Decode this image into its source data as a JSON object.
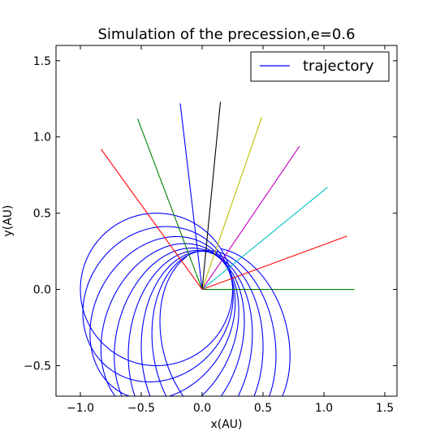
{
  "chart_data": {
    "type": "line",
    "title": "Simulation of the precession,e=0.6",
    "xlabel": "x(AU)",
    "ylabel": "y(AU)",
    "xlim": [
      -1.2,
      1.6
    ],
    "ylim": [
      -0.7,
      1.6
    ],
    "xticks": [
      -1.0,
      -0.5,
      0.0,
      0.5,
      1.0,
      1.5
    ],
    "xtick_labels": [
      "−1.0",
      "−0.5",
      "0.0",
      "0.5",
      "1.0",
      "1.5"
    ],
    "yticks": [
      -0.5,
      0.0,
      0.5,
      1.0,
      1.5
    ],
    "ytick_labels": [
      "−0.5",
      "0.0",
      "0.5",
      "1.0",
      "1.5"
    ],
    "grid": false,
    "legend": {
      "position": "top-right",
      "entries": [
        {
          "label": "trajectory",
          "color": "#0000ff"
        }
      ]
    },
    "series": [
      {
        "name": "trajectory",
        "color": "#0000ff",
        "eccentricity": 0.6,
        "perihelion_distance": 0.25,
        "periapsis_angles_deg": [
          0,
          15,
          30,
          45,
          60,
          75,
          90,
          105,
          120
        ],
        "partial_last_orbit_end_deg": 300
      }
    ],
    "apsis_lines": [
      {
        "x": 1.25,
        "y": 0.0,
        "color": "#008000"
      },
      {
        "x": 1.19,
        "y": 0.35,
        "color": "#ff0000"
      },
      {
        "x": 1.03,
        "y": 0.67,
        "color": "#00bfbf"
      },
      {
        "x": 0.8,
        "y": 0.94,
        "color": "#bf00bf"
      },
      {
        "x": 0.49,
        "y": 1.13,
        "color": "#bfbf00"
      },
      {
        "x": 0.15,
        "y": 1.23,
        "color": "#000000"
      },
      {
        "x": -0.18,
        "y": 1.22,
        "color": "#0000ff"
      },
      {
        "x": -0.53,
        "y": 1.12,
        "color": "#008000"
      },
      {
        "x": -0.83,
        "y": 0.92,
        "color": "#ff0000"
      }
    ]
  }
}
